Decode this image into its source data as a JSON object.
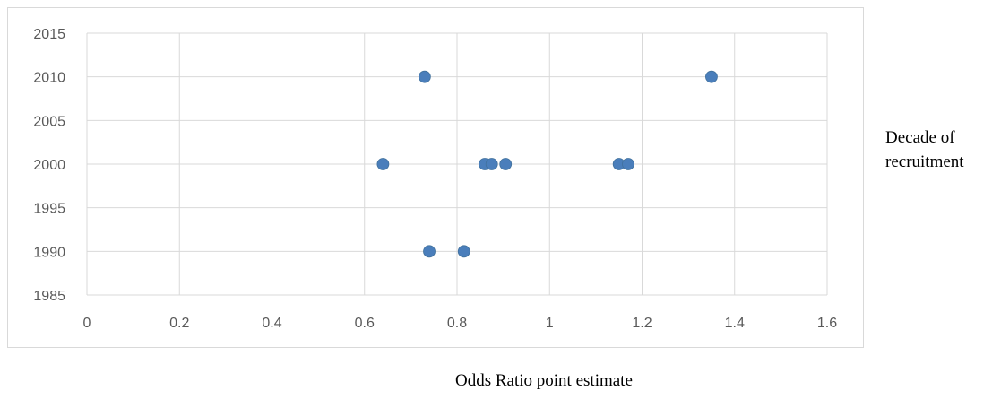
{
  "chart_data": {
    "type": "scatter",
    "xlim": [
      0,
      1.6
    ],
    "ylim": [
      1985,
      2015
    ],
    "x_ticks": [
      "0",
      "0.2",
      "0.4",
      "0.6",
      "0.8",
      "1",
      "1.2",
      "1.4",
      "1.6"
    ],
    "y_ticks": [
      "1985",
      "1990",
      "1995",
      "2000",
      "2005",
      "2010",
      "2015"
    ],
    "grid": true,
    "marker_color": "#4a7ebb",
    "points": [
      {
        "x": 0.73,
        "y": 2010
      },
      {
        "x": 1.35,
        "y": 2010
      },
      {
        "x": 0.64,
        "y": 2000
      },
      {
        "x": 0.86,
        "y": 2000
      },
      {
        "x": 0.875,
        "y": 2000
      },
      {
        "x": 0.905,
        "y": 2000
      },
      {
        "x": 1.15,
        "y": 2000
      },
      {
        "x": 1.17,
        "y": 2000
      },
      {
        "x": 0.74,
        "y": 1990
      },
      {
        "x": 0.815,
        "y": 1990
      }
    ]
  },
  "labels": {
    "y_axis": "Decade of recruitment",
    "x_axis": "Odds Ratio point estimate"
  }
}
